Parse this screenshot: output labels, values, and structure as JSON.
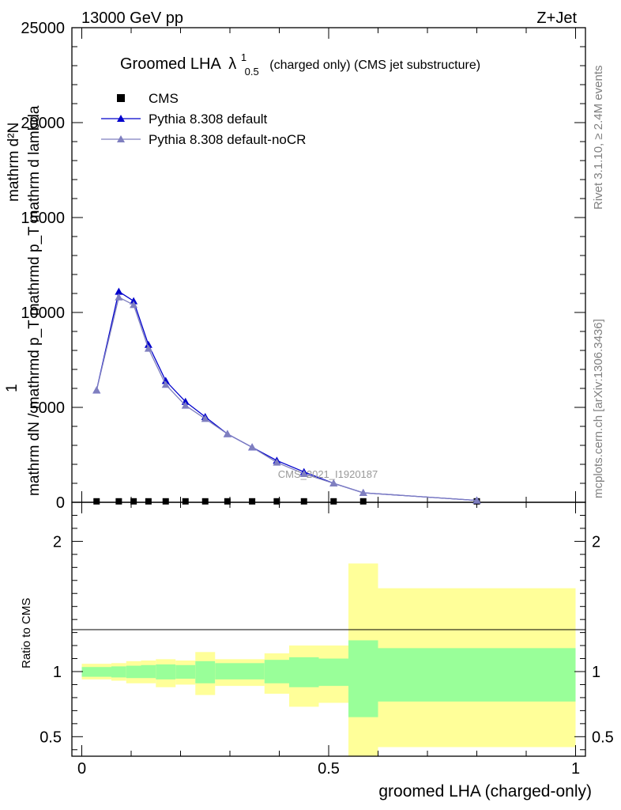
{
  "header": {
    "left": "13000 GeV pp",
    "right": "Z+Jet"
  },
  "title": {
    "main": "Groomed LHA",
    "lambda": "λ",
    "sup": "1",
    "sub": "0.5",
    "rest": "(charged only) (CMS jet substructure)"
  },
  "side_labels": {
    "rivet": "Rivet 3.1.10, ≥ 2.4M events",
    "mcplots": "mcplots.cern.ch [arXiv:1306.3436]"
  },
  "watermark": "CMS_2021_I1920187",
  "legend": [
    {
      "name": "CMS",
      "color": "#000000",
      "marker": "square"
    },
    {
      "name": "Pythia 8.308 default",
      "color": "#0000cc",
      "marker": "triangle"
    },
    {
      "name": "Pythia 8.308 default-noCR",
      "color": "#7f7fbf",
      "marker": "triangle"
    }
  ],
  "axes": {
    "ylabel_main": "1 / mathrm dN / mathrmd p_T mathrmd p_T mathrm d lambda / mathrm dN",
    "ylabel_num": "mathrm d²N",
    "ylabel_den": "mathrm dN / mathrmd p_T mathrmd p_T mathrm d lambda",
    "ylabel_one": "1",
    "ylabel_ratio": "Ratio to CMS",
    "xlabel": "groomed LHA (charged-only)"
  },
  "chart_data": {
    "type": "line",
    "xlim": [
      -0.02,
      1.02
    ],
    "main": {
      "ylim": [
        0,
        25000
      ],
      "yticks": [
        0,
        5000,
        10000,
        15000,
        20000,
        25000
      ],
      "ytick_labels": [
        "0",
        "5000",
        "10000",
        "15000",
        "20000",
        "25000"
      ]
    },
    "ratio": {
      "ylim": [
        0.35,
        2.3
      ],
      "yticks": [
        0.5,
        1,
        2
      ],
      "ytick_labels": [
        "0.5",
        "1",
        "2"
      ]
    },
    "xticks": [
      0,
      0.5,
      1
    ],
    "xtick_labels": [
      "0",
      "0.5",
      "1"
    ],
    "series": [
      {
        "name": "CMS",
        "x": [
          0.03,
          0.075,
          0.105,
          0.135,
          0.17,
          0.21,
          0.25,
          0.295,
          0.345,
          0.395,
          0.45,
          0.51,
          0.57,
          0.8
        ],
        "values": [
          50,
          50,
          50,
          50,
          50,
          50,
          50,
          50,
          50,
          50,
          50,
          50,
          50,
          50
        ]
      },
      {
        "name": "Pythia 8.308 default",
        "x": [
          0.03,
          0.075,
          0.105,
          0.135,
          0.17,
          0.21,
          0.25,
          0.295,
          0.345,
          0.395,
          0.45,
          0.51,
          0.57,
          0.8
        ],
        "values": [
          5900,
          11100,
          10600,
          8300,
          6400,
          5300,
          4500,
          3600,
          2900,
          2200,
          1600,
          1000,
          500,
          100
        ]
      },
      {
        "name": "Pythia 8.308 default-noCR",
        "x": [
          0.03,
          0.075,
          0.105,
          0.135,
          0.17,
          0.21,
          0.25,
          0.295,
          0.345,
          0.395,
          0.45,
          0.51,
          0.57,
          0.8
        ],
        "values": [
          5900,
          10800,
          10400,
          8100,
          6200,
          5100,
          4400,
          3600,
          2900,
          2100,
          1500,
          1000,
          500,
          100
        ]
      }
    ],
    "ratio_bands": {
      "bins": [
        0,
        0.06,
        0.09,
        0.12,
        0.15,
        0.19,
        0.23,
        0.27,
        0.32,
        0.37,
        0.42,
        0.48,
        0.54,
        0.6,
        1.0
      ],
      "green_lo": [
        0.96,
        0.955,
        0.95,
        0.95,
        0.94,
        0.945,
        0.91,
        0.94,
        0.94,
        0.91,
        0.88,
        0.89,
        0.65,
        0.77
      ],
      "green_hi": [
        1.035,
        1.04,
        1.045,
        1.05,
        1.055,
        1.05,
        1.08,
        1.065,
        1.065,
        1.09,
        1.11,
        1.1,
        1.24,
        1.18
      ],
      "yellow_lo": [
        0.94,
        0.93,
        0.91,
        0.91,
        0.88,
        0.9,
        0.82,
        0.89,
        0.89,
        0.83,
        0.73,
        0.76,
        0.35,
        0.42
      ],
      "yellow_hi": [
        1.06,
        1.065,
        1.08,
        1.085,
        1.095,
        1.085,
        1.15,
        1.095,
        1.095,
        1.14,
        1.2,
        1.2,
        1.83,
        1.64
      ]
    }
  }
}
